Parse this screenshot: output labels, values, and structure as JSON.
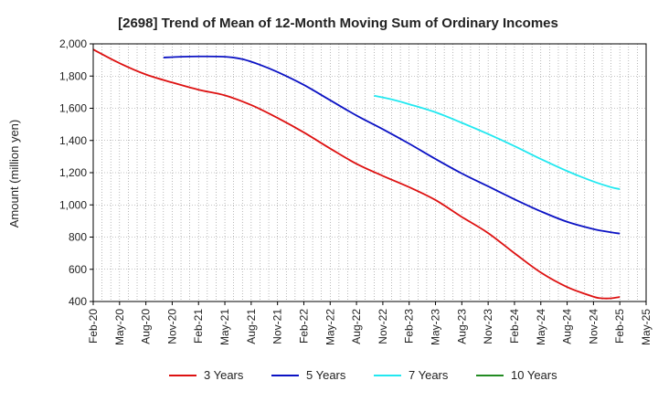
{
  "chart_data": {
    "type": "line",
    "title": "[2698]  Trend of Mean of 12-Month Moving Sum of Ordinary Incomes",
    "xlabel": "",
    "ylabel": "Amount (million yen)",
    "ylim": [
      400,
      2000
    ],
    "yticks": [
      400,
      600,
      800,
      1000,
      1200,
      1400,
      1600,
      1800,
      2000
    ],
    "ytick_labels": [
      "400",
      "600",
      "800",
      "1,000",
      "1,200",
      "1,400",
      "1,600",
      "1,800",
      "2,000"
    ],
    "x_start": "Feb-20",
    "x_months_total": 63,
    "xticks": [
      {
        "label": "Feb-20",
        "m": 0
      },
      {
        "label": "May-20",
        "m": 3
      },
      {
        "label": "Aug-20",
        "m": 6
      },
      {
        "label": "Nov-20",
        "m": 9
      },
      {
        "label": "Feb-21",
        "m": 12
      },
      {
        "label": "May-21",
        "m": 15
      },
      {
        "label": "Aug-21",
        "m": 18
      },
      {
        "label": "Nov-21",
        "m": 21
      },
      {
        "label": "Feb-22",
        "m": 24
      },
      {
        "label": "May-22",
        "m": 27
      },
      {
        "label": "Aug-22",
        "m": 30
      },
      {
        "label": "Nov-22",
        "m": 33
      },
      {
        "label": "Feb-23",
        "m": 36
      },
      {
        "label": "May-23",
        "m": 39
      },
      {
        "label": "Aug-23",
        "m": 42
      },
      {
        "label": "Nov-23",
        "m": 45
      },
      {
        "label": "Feb-24",
        "m": 48
      },
      {
        "label": "May-24",
        "m": 51
      },
      {
        "label": "Aug-24",
        "m": 54
      },
      {
        "label": "Nov-24",
        "m": 57
      },
      {
        "label": "Feb-25",
        "m": 60
      },
      {
        "label": "May-25",
        "m": 63
      }
    ],
    "grid": true,
    "legend_position": "bottom",
    "series": [
      {
        "name": "3 Years",
        "color": "#dd1111",
        "points": [
          [
            0,
            1965
          ],
          [
            3,
            1880
          ],
          [
            6,
            1810
          ],
          [
            9,
            1760
          ],
          [
            12,
            1715
          ],
          [
            15,
            1680
          ],
          [
            18,
            1620
          ],
          [
            21,
            1540
          ],
          [
            24,
            1450
          ],
          [
            27,
            1350
          ],
          [
            30,
            1255
          ],
          [
            33,
            1180
          ],
          [
            36,
            1110
          ],
          [
            39,
            1030
          ],
          [
            42,
            925
          ],
          [
            45,
            825
          ],
          [
            48,
            700
          ],
          [
            51,
            580
          ],
          [
            54,
            490
          ],
          [
            57,
            430
          ],
          [
            58,
            420
          ],
          [
            59,
            420
          ],
          [
            60,
            428
          ]
        ]
      },
      {
        "name": "5 Years",
        "color": "#0b12c4",
        "points": [
          [
            8,
            1915
          ],
          [
            10,
            1920
          ],
          [
            12,
            1922
          ],
          [
            15,
            1920
          ],
          [
            17,
            1905
          ],
          [
            19,
            1870
          ],
          [
            21,
            1825
          ],
          [
            24,
            1745
          ],
          [
            27,
            1650
          ],
          [
            30,
            1555
          ],
          [
            33,
            1470
          ],
          [
            36,
            1380
          ],
          [
            39,
            1285
          ],
          [
            42,
            1195
          ],
          [
            45,
            1115
          ],
          [
            48,
            1035
          ],
          [
            51,
            960
          ],
          [
            54,
            895
          ],
          [
            57,
            850
          ],
          [
            59,
            830
          ],
          [
            60,
            822
          ]
        ]
      },
      {
        "name": "7 Years",
        "color": "#22e8f0",
        "points": [
          [
            32,
            1678
          ],
          [
            34,
            1655
          ],
          [
            36,
            1625
          ],
          [
            39,
            1575
          ],
          [
            42,
            1510
          ],
          [
            45,
            1440
          ],
          [
            48,
            1365
          ],
          [
            51,
            1285
          ],
          [
            54,
            1210
          ],
          [
            57,
            1145
          ],
          [
            59,
            1110
          ],
          [
            60,
            1098
          ]
        ]
      },
      {
        "name": "10 Years",
        "color": "#228b22",
        "points": []
      }
    ]
  }
}
